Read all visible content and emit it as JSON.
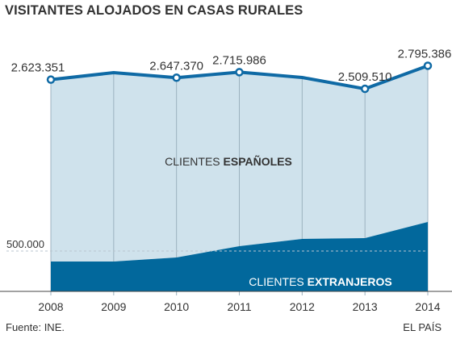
{
  "title": "VISITANTES ALOJADOS EN CASAS RURALES",
  "source": "Fuente: INE.",
  "brand": "EL PAÍS",
  "colors": {
    "total_line": "#0f6aa5",
    "espanoles_fill": "#cfe2ec",
    "extranjeros_fill": "#02689c",
    "grid": "#9cb2bf",
    "ref_line": "#b9c6cf",
    "text": "#333333"
  },
  "chart_data": {
    "type": "area",
    "stacked": true,
    "title": "VISITANTES ALOJADOS EN CASAS RURALES",
    "categories": [
      "2008",
      "2009",
      "2010",
      "2011",
      "2012",
      "2013",
      "2014"
    ],
    "series": [
      {
        "name": "CLIENTES EXTRANJEROS",
        "name_regular": "CLIENTES ",
        "name_bold": "EXTRANJEROS",
        "values": [
          370000,
          370000,
          420000,
          560000,
          650000,
          660000,
          860000
        ]
      },
      {
        "name": "CLIENTES ESPAÑOLES",
        "name_regular": "CLIENTES ",
        "name_bold": "ESPAÑOLES",
        "values": [
          2253351,
          2340000,
          2227370,
          2155986,
          2000000,
          1849510,
          1935386
        ]
      }
    ],
    "totals": [
      2623351,
      2710000,
      2647370,
      2715986,
      2650000,
      2509510,
      2795386
    ],
    "total_labels": [
      "2.623.351",
      "",
      "2.647.370",
      "2.715.986",
      "",
      "2.509.510",
      "2.795.386"
    ],
    "reference_line": {
      "value": 500000,
      "label": "500.000"
    },
    "ylim": [
      0,
      3000000
    ],
    "grid": "vertical",
    "legend": "inline"
  }
}
